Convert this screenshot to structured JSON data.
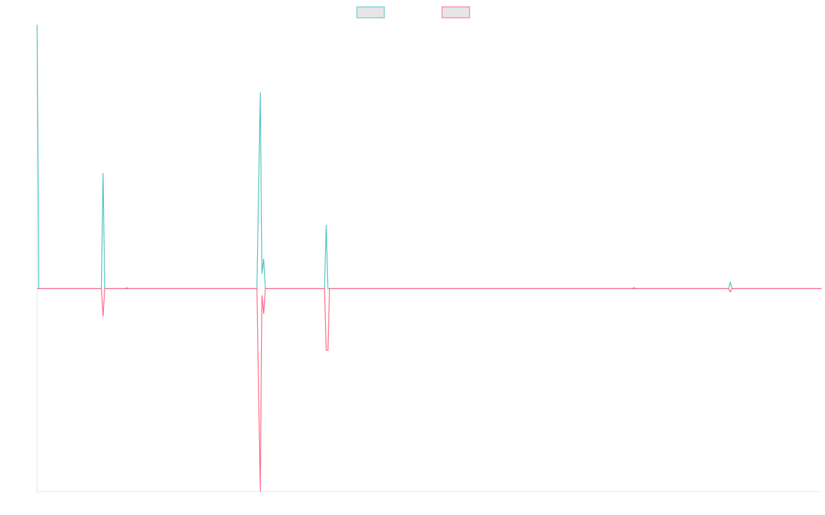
{
  "chart_data": {
    "type": "line",
    "title": "",
    "xlabel": "",
    "ylabel": "",
    "grid": false,
    "legend_position": "top-center",
    "ylim": [
      -300,
      390
    ],
    "xlim": [
      0,
      232
    ],
    "series": [
      {
        "name": "",
        "color": "#4bc0c0",
        "points": [
          [
            0,
            390
          ],
          [
            0.5,
            0
          ],
          [
            19,
            0
          ],
          [
            19.5,
            171
          ],
          [
            20,
            0
          ],
          [
            26,
            0
          ],
          [
            26.5,
            1.5
          ],
          [
            27,
            0
          ],
          [
            65,
            0
          ],
          [
            66,
            290
          ],
          [
            66.5,
            22
          ],
          [
            67,
            44
          ],
          [
            67.5,
            0
          ],
          [
            85,
            0
          ],
          [
            85.5,
            94
          ],
          [
            86,
            0
          ],
          [
            176,
            0
          ],
          [
            176.5,
            1.5
          ],
          [
            177,
            0
          ],
          [
            204.5,
            0
          ],
          [
            205,
            10
          ],
          [
            205.5,
            0
          ],
          [
            232,
            0
          ]
        ]
      },
      {
        "name": "",
        "color": "#ff6384",
        "points": [
          [
            0,
            0
          ],
          [
            19,
            0
          ],
          [
            19.5,
            -41
          ],
          [
            20,
            0
          ],
          [
            65,
            0
          ],
          [
            66,
            -300
          ],
          [
            66.5,
            -10
          ],
          [
            67,
            -37
          ],
          [
            67.5,
            0
          ],
          [
            85,
            0
          ],
          [
            85.5,
            -91
          ],
          [
            86,
            -91
          ],
          [
            86.5,
            0
          ],
          [
            204.5,
            0
          ],
          [
            205,
            -5
          ],
          [
            205.5,
            0
          ],
          [
            232,
            0
          ]
        ]
      }
    ]
  }
}
